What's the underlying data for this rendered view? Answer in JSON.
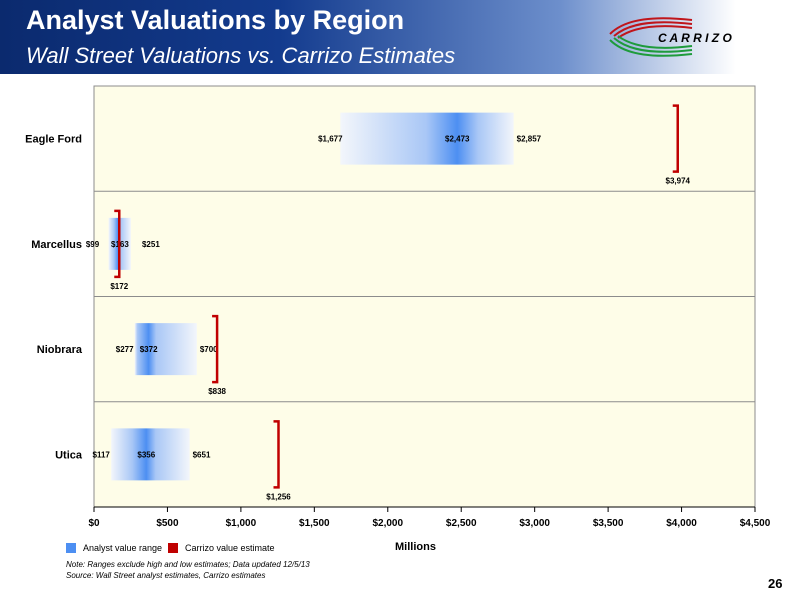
{
  "header": {
    "title": "Analyst Valuations by Region",
    "subtitle": "Wall Street Valuations vs. Carrizo Estimates",
    "logo_text": "C A R R I Z O"
  },
  "legend": {
    "analyst_label": "Analyst value range",
    "carrizo_label": "Carrizo value estimate"
  },
  "footer": {
    "note_line1": "Note: Ranges exclude high and low estimates; Data updated 12/5/13",
    "note_line2": "Source: Wall Street analyst estimates, Carrizo estimates",
    "page_number": "26"
  },
  "colors": {
    "analyst_range": "#4d8ff2",
    "carrizo_estimate": "#c00000",
    "plot_background": "#fefde8",
    "header_dark": "#0b2a6e",
    "logo_red": "#c0151b",
    "logo_green": "#1e9b3c"
  },
  "chart_data": {
    "type": "bar",
    "orientation": "horizontal-range",
    "title": "",
    "xlabel": "Millions",
    "ylabel": "",
    "xlim": [
      0,
      4500
    ],
    "x_tick_labels": [
      "$0",
      "$500",
      "$1,000",
      "$1,500",
      "$2,000",
      "$2,500",
      "$3,000",
      "$3,500",
      "$4,000",
      "$4,500"
    ],
    "x_ticks": [
      0,
      500,
      1000,
      1500,
      2000,
      2500,
      3000,
      3500,
      4000,
      4500
    ],
    "grid": false,
    "legend_position": "bottom-left",
    "categories": [
      "Eagle Ford",
      "Marcellus",
      "Niobrara",
      "Utica"
    ],
    "series": [
      {
        "name": "Analyst value range",
        "low": [
          1677,
          99,
          277,
          117
        ],
        "mid": [
          2473,
          163,
          372,
          356
        ],
        "high": [
          2857,
          251,
          700,
          651
        ],
        "low_labels": [
          "$1,677",
          "$99",
          "$277",
          "$117"
        ],
        "mid_labels": [
          "$2,473",
          "$163",
          "$372",
          "$356"
        ],
        "high_labels": [
          "$2,857",
          "$251",
          "$700",
          "$651"
        ]
      },
      {
        "name": "Carrizo value estimate",
        "values": [
          3974,
          172,
          838,
          1256
        ],
        "labels": [
          "$3,974",
          "$172",
          "$838",
          "$1,256"
        ]
      }
    ]
  }
}
